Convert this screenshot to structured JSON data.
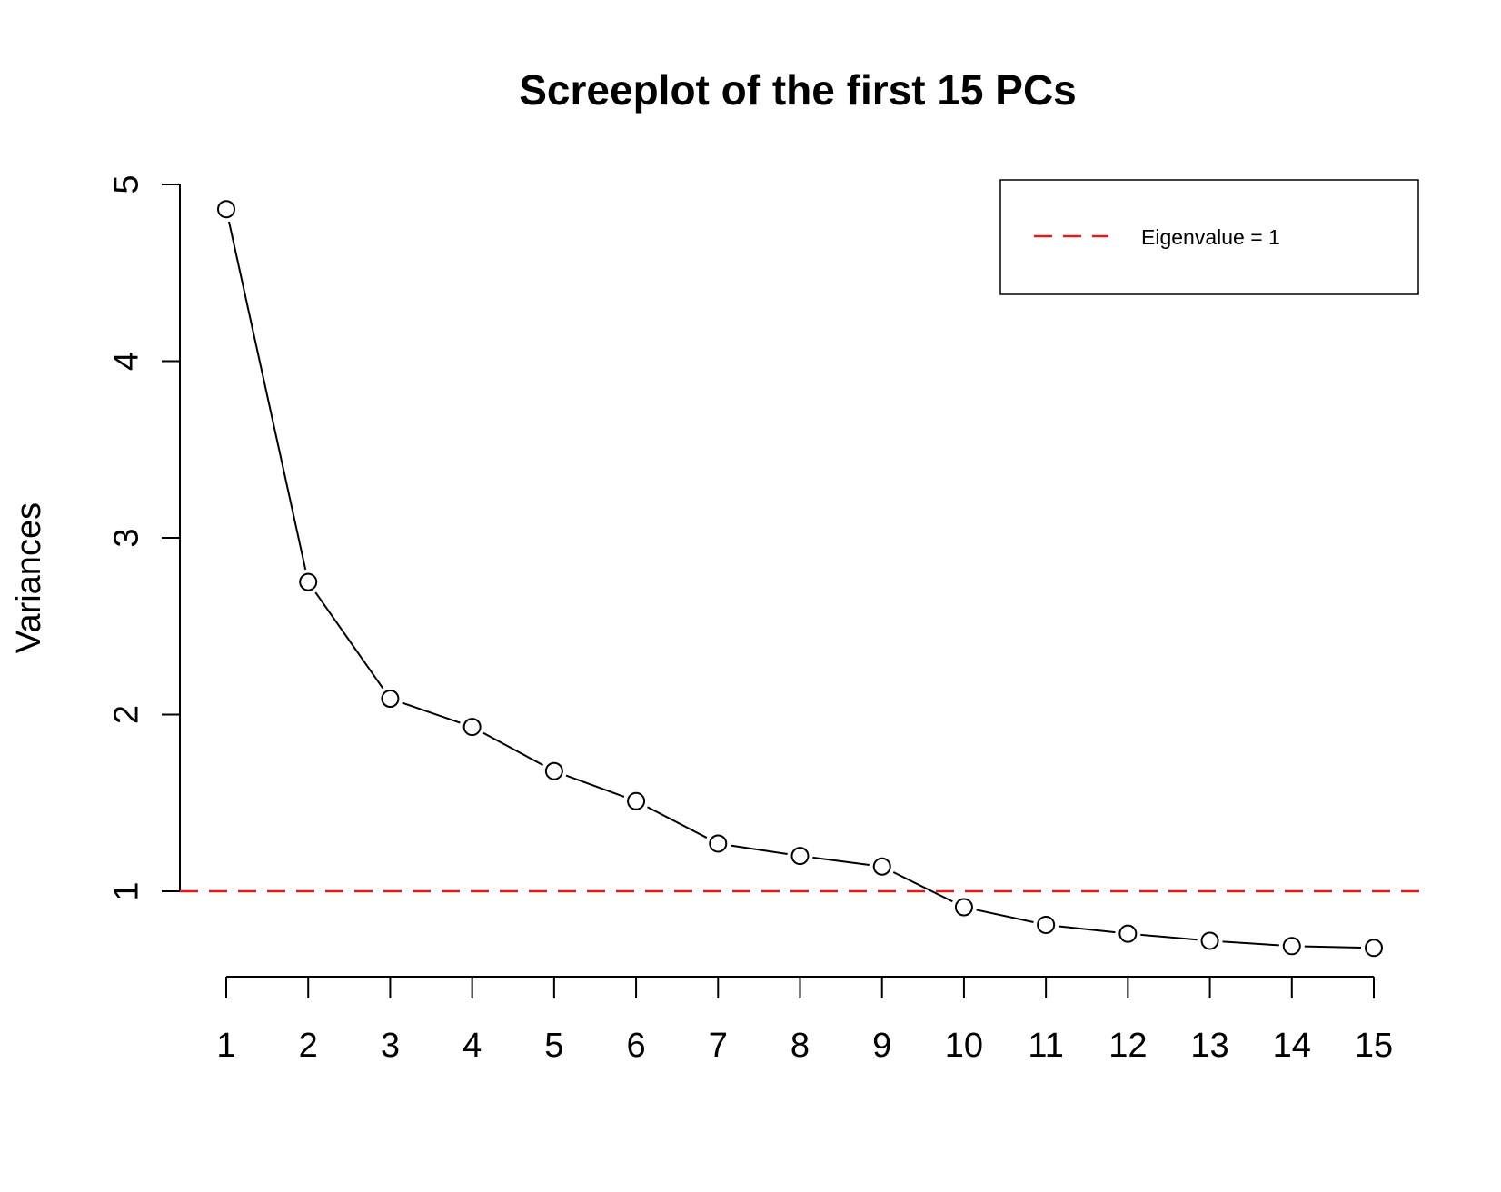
{
  "chart_data": {
    "type": "line",
    "title": "Screeplot of the first 15 PCs",
    "xlabel": "",
    "ylabel": "Variances",
    "x": [
      1,
      2,
      3,
      4,
      5,
      6,
      7,
      8,
      9,
      10,
      11,
      12,
      13,
      14,
      15
    ],
    "x_tick_labels": [
      "1",
      "2",
      "3",
      "4",
      "5",
      "6",
      "7",
      "8",
      "9",
      "10",
      "11",
      "12",
      "13",
      "14",
      "15"
    ],
    "values": [
      4.86,
      2.75,
      2.09,
      1.93,
      1.68,
      1.51,
      1.27,
      1.2,
      1.14,
      0.91,
      0.81,
      0.76,
      0.72,
      0.69,
      0.68
    ],
    "y_ticks": [
      1,
      2,
      3,
      4,
      5
    ],
    "ylim": [
      0.5,
      5
    ],
    "reference_line": {
      "y": 1,
      "color": "#e41a1c",
      "style": "dashed"
    },
    "legend": {
      "placement": "top-right",
      "entries": [
        {
          "label": "Eigenvalue = 1",
          "color": "#e41a1c",
          "style": "dashed"
        }
      ]
    },
    "marker": "open-circle",
    "line_color": "#000000",
    "grid": false
  }
}
